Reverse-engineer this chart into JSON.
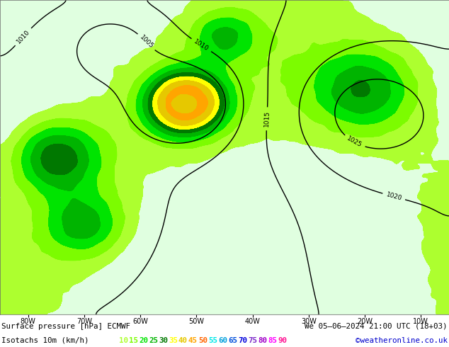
{
  "title_line1": "Surface pressure [hPa] ECMWF",
  "title_line2": "We 05–06–2024 21:00 UTC (18+03)",
  "legend_label": "Isotachs 10m (km/h)",
  "copyright": "©weatheronline.co.uk",
  "isotach_values": [
    10,
    15,
    20,
    25,
    30,
    35,
    40,
    45,
    50,
    55,
    60,
    65,
    70,
    75,
    80,
    85,
    90
  ],
  "isotach_colors": [
    "#adff2f",
    "#7cfc00",
    "#00e400",
    "#00b400",
    "#007800",
    "#ffff00",
    "#e6c800",
    "#ffa500",
    "#ff6400",
    "#00e8e8",
    "#00a0dc",
    "#0050dc",
    "#0000dc",
    "#7b28c8",
    "#a000c8",
    "#ff00ff",
    "#ff1493"
  ],
  "bg_color": "#ffffff",
  "figsize": [
    6.34,
    4.9
  ],
  "dpi": 100,
  "lon_labels": [
    "80W",
    "70W",
    "60W",
    "50W",
    "40W",
    "30W",
    "20W",
    "10W"
  ],
  "lon_ticks": [
    -80,
    -70,
    -60,
    -50,
    -40,
    -30,
    -20,
    -10
  ],
  "xlim": [
    -85,
    -5
  ],
  "ylim": [
    0,
    70
  ],
  "grid_color": "#aaaaaa",
  "contour_color": "#000000",
  "pressure_contour_color": "#000000",
  "land_color": "#c8e6a0",
  "sea_color": "#ddeeff",
  "fill_levels": [
    0,
    10,
    15,
    20,
    25,
    30,
    35,
    40,
    45,
    50,
    55,
    60,
    65,
    70,
    75,
    80,
    85,
    90,
    200
  ],
  "fill_colors": [
    "#e0ffe0",
    "#adff2f",
    "#7cfc00",
    "#00e400",
    "#00b400",
    "#007800",
    "#ffff00",
    "#e6c800",
    "#ffa500",
    "#ff6400",
    "#00e8e8",
    "#00a0dc",
    "#0050dc",
    "#0000dc",
    "#7b28c8",
    "#a000c8",
    "#ff00ff",
    "#ff1493",
    "#ff1493"
  ]
}
